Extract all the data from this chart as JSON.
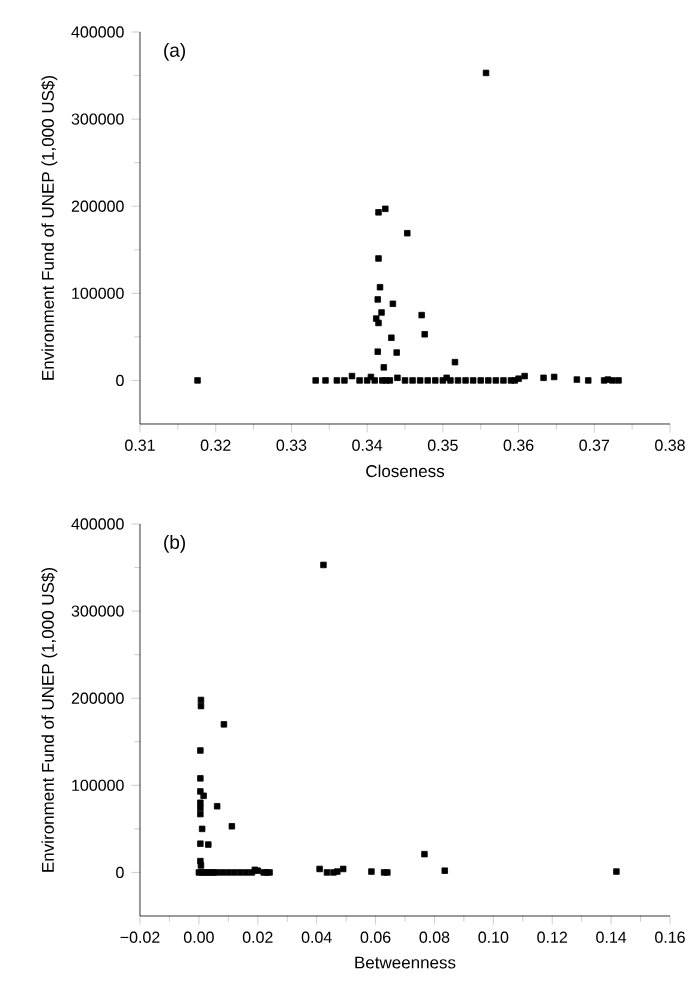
{
  "chart_data": [
    {
      "type": "scatter",
      "annotations": [
        "(a)"
      ],
      "xlabel": "Closeness",
      "ylabel": "Environment Fund of UNEP (1,000 US$)",
      "marker": "square",
      "xlim": [
        0.31,
        0.38
      ],
      "ylim": [
        -50000,
        400000
      ],
      "xticks": [
        0.31,
        0.32,
        0.33,
        0.34,
        0.35,
        0.36,
        0.37,
        0.38
      ],
      "yticks": [
        0,
        100000,
        200000,
        300000,
        400000
      ],
      "series": [
        {
          "color": "#000000",
          "x": [
            0.3176,
            0.3557,
            0.3415,
            0.3424,
            0.3453,
            0.3415,
            0.3417,
            0.3414,
            0.3434,
            0.3419,
            0.3472,
            0.3412,
            0.3415,
            0.3432,
            0.3476,
            0.3414,
            0.3439,
            0.3516,
            0.3422,
            0.3332,
            0.3345,
            0.336,
            0.337,
            0.338,
            0.339,
            0.34,
            0.3405,
            0.341,
            0.342,
            0.3425,
            0.343,
            0.344,
            0.345,
            0.346,
            0.347,
            0.348,
            0.349,
            0.35,
            0.3505,
            0.351,
            0.352,
            0.353,
            0.354,
            0.355,
            0.356,
            0.357,
            0.358,
            0.359,
            0.3595,
            0.36,
            0.3608,
            0.3633,
            0.3647,
            0.3677,
            0.3692,
            0.3713,
            0.3718,
            0.3724,
            0.3732
          ],
          "values": [
            0,
            353000,
            193000,
            197000,
            169000,
            140000,
            107000,
            93000,
            88000,
            78000,
            75000,
            71000,
            66000,
            49000,
            53000,
            33000,
            32000,
            21000,
            15000,
            0,
            0,
            0,
            0,
            5000,
            0,
            0,
            4000,
            0,
            0,
            0,
            0,
            3000,
            0,
            0,
            0,
            0,
            0,
            0,
            3000,
            0,
            0,
            0,
            0,
            0,
            0,
            0,
            0,
            0,
            0,
            2000,
            5000,
            3000,
            4000,
            1000,
            0,
            0,
            1000,
            0,
            0
          ]
        }
      ]
    },
    {
      "type": "scatter",
      "annotations": [
        "(b)"
      ],
      "xlabel": "Betweenness",
      "ylabel": "Environment Fund of UNEP (1,000 US$)",
      "marker": "square",
      "xlim": [
        -0.02,
        0.16
      ],
      "ylim": [
        -50000,
        400000
      ],
      "xticks": [
        {
          "value": -0.02,
          "label": "−0.02"
        },
        {
          "value": 0,
          "label": "0.00"
        },
        {
          "value": 0.02,
          "label": "0.02"
        },
        {
          "value": 0.04,
          "label": "0.04"
        },
        {
          "value": 0.06,
          "label": "0.06"
        },
        {
          "value": 0.08,
          "label": "0.08"
        },
        {
          "value": 0.1,
          "label": "0.10"
        },
        {
          "value": 0.12,
          "label": "0.12"
        },
        {
          "value": 0.14,
          "label": "0.14"
        },
        {
          "value": 0.16,
          "label": "0.16"
        }
      ],
      "yticks": [
        0,
        100000,
        200000,
        300000,
        400000
      ],
      "series": [
        {
          "color": "#000000",
          "x": [
            0.0423,
            0.0007,
            0.0007,
            0.0085,
            0.0005,
            0.0005,
            0.0005,
            0.0016,
            0.0005,
            0.0005,
            0.0005,
            0.0062,
            0.0011,
            0.0112,
            0.0005,
            0.0032,
            0.0005,
            0.0007,
            0.0766,
            0.0835,
            0.1418,
            0.0586,
            0.0629,
            0.064,
            0.041,
            0.0435,
            0.0457,
            0.047,
            0.049,
            0.0,
            0.001,
            0.002,
            0.003,
            0.004,
            0.005,
            0.006,
            0.008,
            0.01,
            0.012,
            0.014,
            0.016,
            0.018,
            0.019,
            0.02,
            0.022,
            0.023,
            0.024
          ],
          "values": [
            353000,
            198000,
            191000,
            170000,
            140000,
            108000,
            93000,
            88000,
            80000,
            74000,
            67000,
            76000,
            50000,
            53000,
            33000,
            32000,
            13000,
            8000,
            21000,
            2000,
            1000,
            1000,
            0,
            0,
            4000,
            0,
            0,
            1000,
            4000,
            0,
            0,
            0,
            0,
            0,
            0,
            0,
            0,
            0,
            0,
            0,
            0,
            0,
            3000,
            2000,
            0,
            0,
            0
          ]
        }
      ]
    }
  ]
}
